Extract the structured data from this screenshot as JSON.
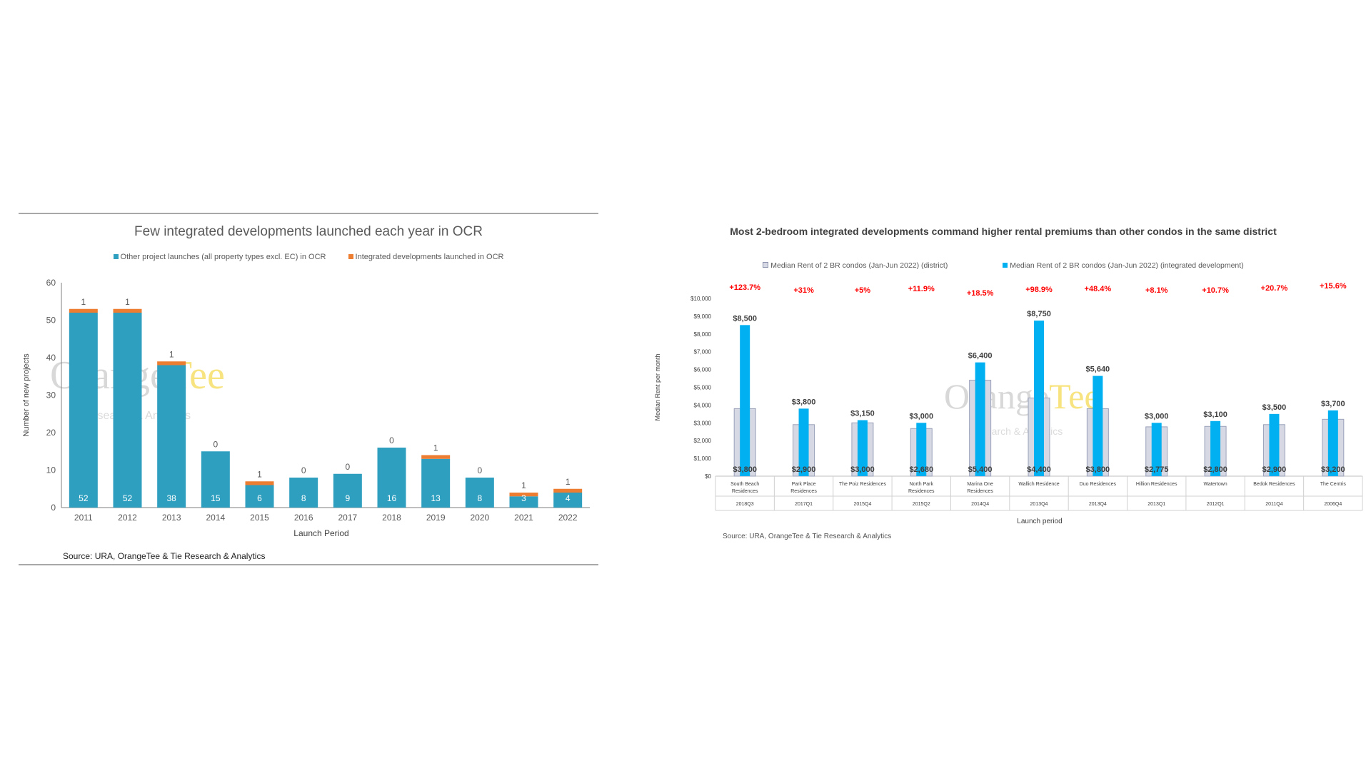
{
  "chart_data": [
    {
      "type": "bar",
      "stacked": true,
      "title": "Few integrated developments launched each year in OCR",
      "xlabel": "Launch Period",
      "ylabel": "Number of new projects",
      "ylim": [
        0,
        60
      ],
      "yticks": [
        "0",
        "10",
        "20",
        "30",
        "40",
        "50",
        "60"
      ],
      "categories": [
        "2011",
        "2012",
        "2013",
        "2014",
        "2015",
        "2016",
        "2017",
        "2018",
        "2019",
        "2020",
        "2021",
        "2022"
      ],
      "series": [
        {
          "name": "Other project launches (all property types excl. EC) in OCR",
          "color": "#2f9fc0",
          "values": [
            52,
            52,
            38,
            15,
            6,
            8,
            9,
            16,
            13,
            8,
            3,
            4
          ]
        },
        {
          "name": "Integrated developments launched in OCR",
          "color": "#ed7d31",
          "values": [
            1,
            1,
            1,
            0,
            1,
            0,
            0,
            0,
            1,
            0,
            1,
            1
          ]
        }
      ],
      "legend_position": "top",
      "grid": false,
      "source": "Source: URA, OrangeTee & Tie Research & Analytics",
      "watermark": {
        "brand_a": "Orange",
        "brand_b": "Tee",
        "sub": "Research & Analytics"
      }
    },
    {
      "type": "bar",
      "title": "Most 2-bedroom integrated developments command higher rental premiums than other condos in the same district",
      "xlabel": "Launch period",
      "ylabel": "Median Rent per month",
      "ylim": [
        0,
        10000
      ],
      "yticks": [
        "$0",
        "$1,000",
        "$2,000",
        "$3,000",
        "$4,000",
        "$5,000",
        "$6,000",
        "$7,000",
        "$8,000",
        "$9,000",
        "$10,000"
      ],
      "categories": [
        {
          "line1": "South Beach",
          "line2": "Residences",
          "period": "2018Q3"
        },
        {
          "line1": "Park Place",
          "line2": "Residences",
          "period": "2017Q1"
        },
        {
          "line1": "The Poiz Residences",
          "line2": "",
          "period": "2015Q4"
        },
        {
          "line1": "North Park",
          "line2": "Residences",
          "period": "2015Q2"
        },
        {
          "line1": "Marina One",
          "line2": "Residences",
          "period": "2014Q4"
        },
        {
          "line1": "Wallich Residence",
          "line2": "",
          "period": "2013Q4"
        },
        {
          "line1": "Duo Residences",
          "line2": "",
          "period": "2013Q4"
        },
        {
          "line1": "Hillion Residences",
          "line2": "",
          "period": "2013Q1"
        },
        {
          "line1": "Watertown",
          "line2": "",
          "period": "2012Q1"
        },
        {
          "line1": "Bedok Residences",
          "line2": "",
          "period": "2011Q4"
        },
        {
          "line1": "The Centris",
          "line2": "",
          "period": "2006Q4"
        }
      ],
      "series": [
        {
          "name": "Median Rent of 2 BR condos (Jan-Jun 2022) (district)",
          "color": "#d6d9e3",
          "values": [
            3800,
            2900,
            3000,
            2680,
            5400,
            4400,
            3800,
            2775,
            2800,
            2900,
            3200
          ],
          "labels": [
            "$3,800",
            "$2,900",
            "$3,000",
            "$2,680",
            "$5,400",
            "$4,400",
            "$3,800",
            "$2,775",
            "$2,800",
            "$2,900",
            "$3,200"
          ]
        },
        {
          "name": "Median Rent of 2 BR condos (Jan-Jun 2022) (integrated development)",
          "color": "#00b0f0",
          "values": [
            8500,
            3800,
            3150,
            3000,
            6400,
            8750,
            5640,
            3000,
            3100,
            3500,
            3700
          ],
          "labels": [
            "$8,500",
            "$3,800",
            "$3,150",
            "$3,000",
            "$6,400",
            "$8,750",
            "$5,640",
            "$3,000",
            "$3,100",
            "$3,500",
            "$3,700"
          ]
        }
      ],
      "premiums": [
        "+123.7%",
        "+31%",
        "+5%",
        "+11.9%",
        "+18.5%",
        "+98.9%",
        "+48.4%",
        "+8.1%",
        "+10.7%",
        "+20.7%",
        "+15.6%"
      ],
      "legend_position": "top",
      "grid": false,
      "source": "Source: URA, OrangeTee & Tie Research & Analytics",
      "watermark": {
        "brand_a": "Orange",
        "brand_b": "Tee",
        "sub": "Research & Analytics"
      }
    }
  ]
}
